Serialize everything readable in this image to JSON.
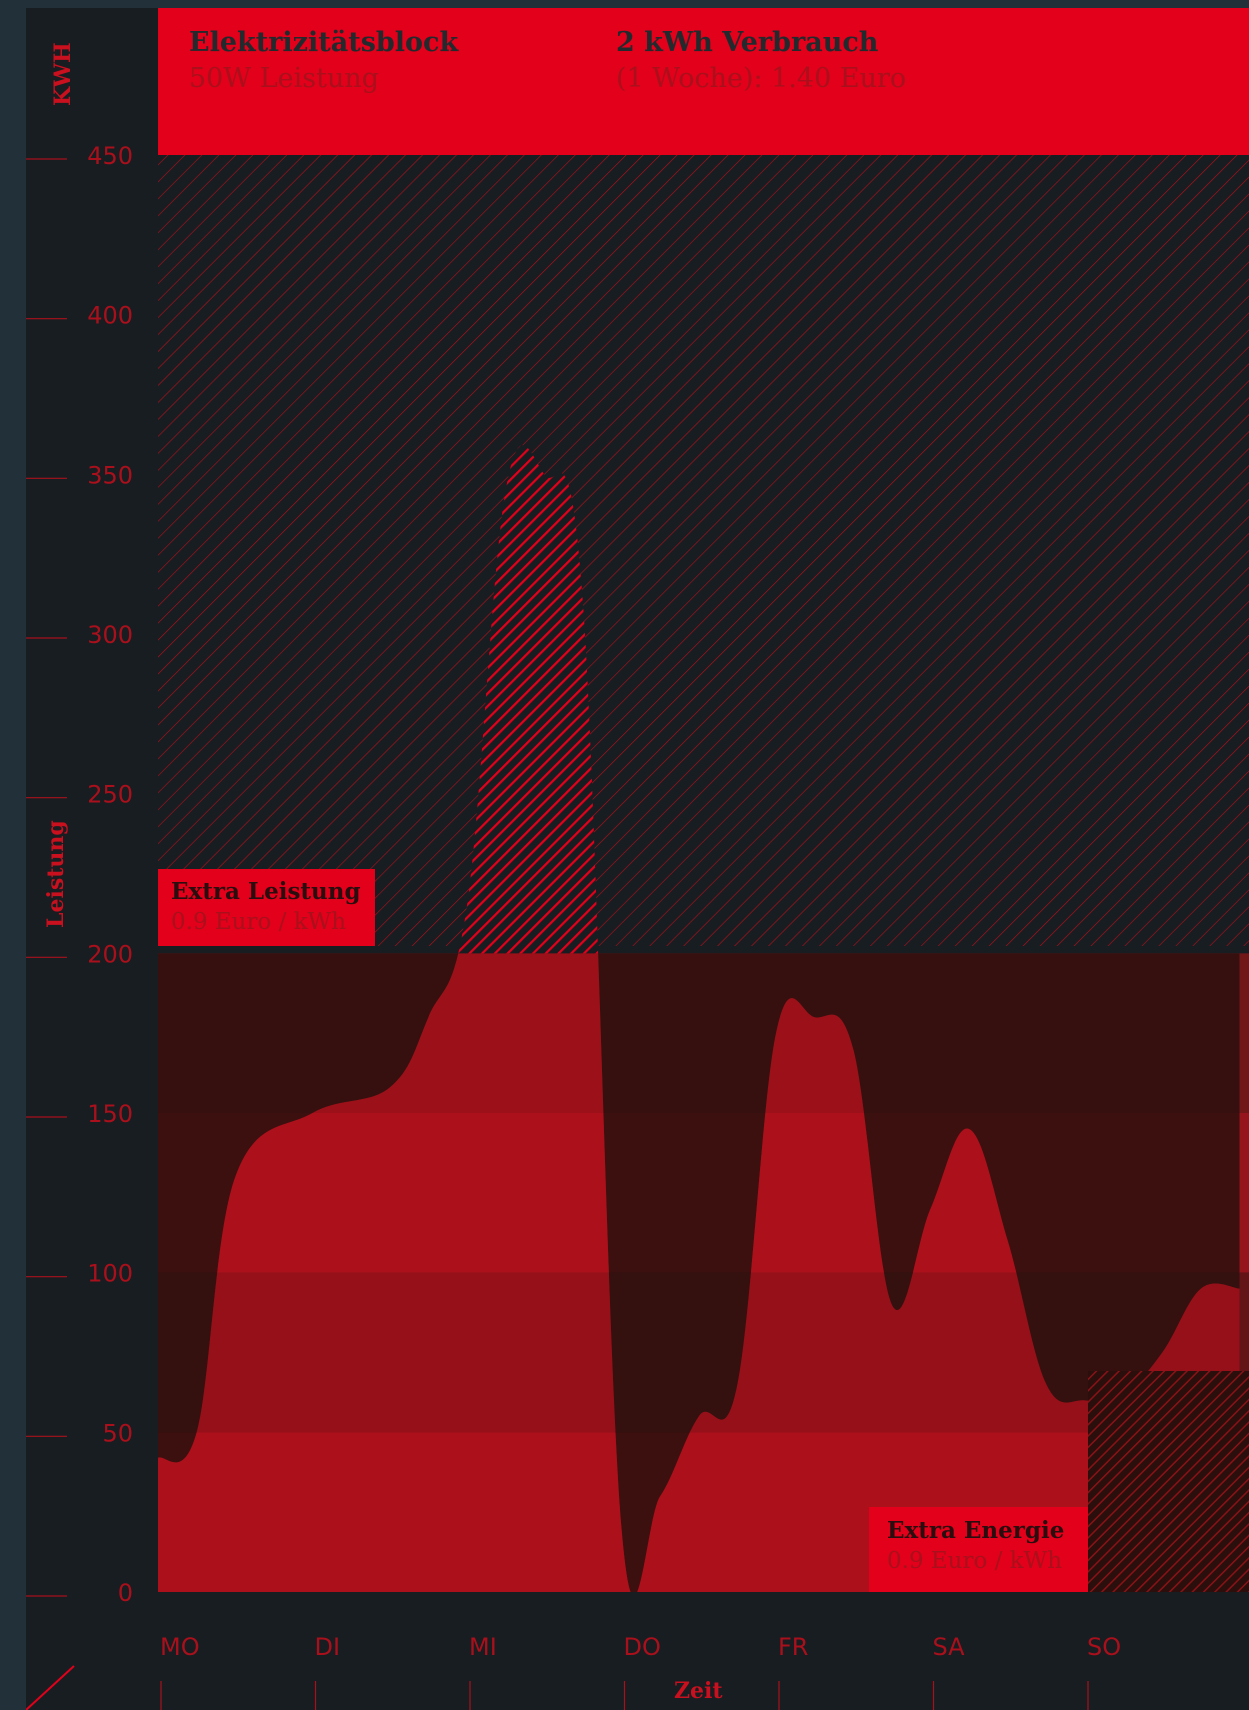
{
  "header": {
    "block_title": "Elektrizitätsblock",
    "block_sub": "50W Leistung",
    "usage_title": "2 kWh Verbrauch",
    "usage_sub": "(1 Woche): 1.40 Euro"
  },
  "labels": {
    "extra_power_title": "Extra Leistung",
    "extra_power_sub": "0.9 Euro / kWh",
    "extra_energy_title": "Extra Energie",
    "extra_energy_sub": "0.9 Euro / kWh"
  },
  "colors": {
    "accent": "#e2001a",
    "band_dark": "#711718",
    "band_mid": "#96141c",
    "band_deep": "#631416",
    "curve_under": "#2b0f0d",
    "background": "#171d21"
  },
  "chart_data": {
    "type": "area",
    "xlabel": "Zeit",
    "ylabel": "Leistung",
    "yunit": "KWH",
    "ylim": [
      0,
      450
    ],
    "yticks": [
      0,
      50,
      100,
      150,
      200,
      250,
      300,
      350,
      400,
      450
    ],
    "categories": [
      "MO",
      "DI",
      "MI",
      "DO",
      "FR",
      "SA",
      "SO"
    ],
    "threshold": 200,
    "series": [
      {
        "x": [
          0.0,
          0.25,
          0.5,
          1.0,
          1.5,
          1.75,
          2.0,
          2.25,
          2.5,
          2.75,
          3.0,
          3.25,
          3.5,
          3.75,
          4.0,
          4.25,
          4.5,
          4.75,
          5.0,
          5.25,
          5.5,
          5.75,
          6.0,
          6.25,
          6.5,
          6.75,
          7.0
        ],
        "values": [
          42,
          50,
          130,
          150,
          158,
          180,
          215,
          345,
          350,
          310,
          20,
          30,
          55,
          65,
          175,
          180,
          170,
          90,
          120,
          145,
          110,
          65,
          60,
          62,
          75,
          95,
          95
        ]
      }
    ]
  }
}
